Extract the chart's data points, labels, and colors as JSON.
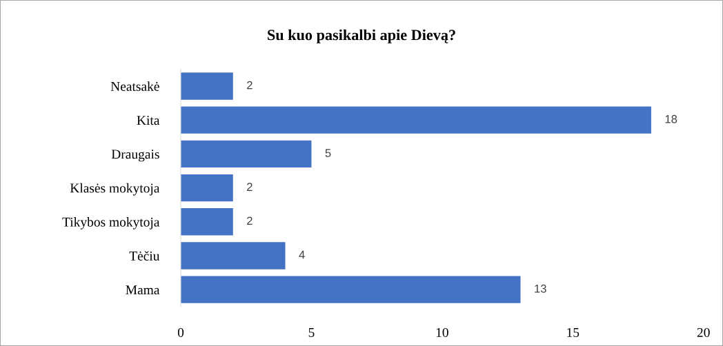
{
  "chart_data": {
    "type": "bar",
    "orientation": "horizontal",
    "title": "Su kuo pasikalbi apie Dievą?",
    "categories": [
      "Neatsakė",
      "Kita",
      "Draugais",
      "Klasės mokytoja",
      "Tikybos mokytoja",
      "Tėčiu",
      "Mama"
    ],
    "values": [
      2,
      18,
      5,
      2,
      2,
      4,
      13
    ],
    "color": "#4472c4",
    "xlim": [
      0,
      20
    ],
    "xticks": [
      0,
      5,
      10,
      15,
      20
    ],
    "grid": false,
    "data_labels": true
  }
}
